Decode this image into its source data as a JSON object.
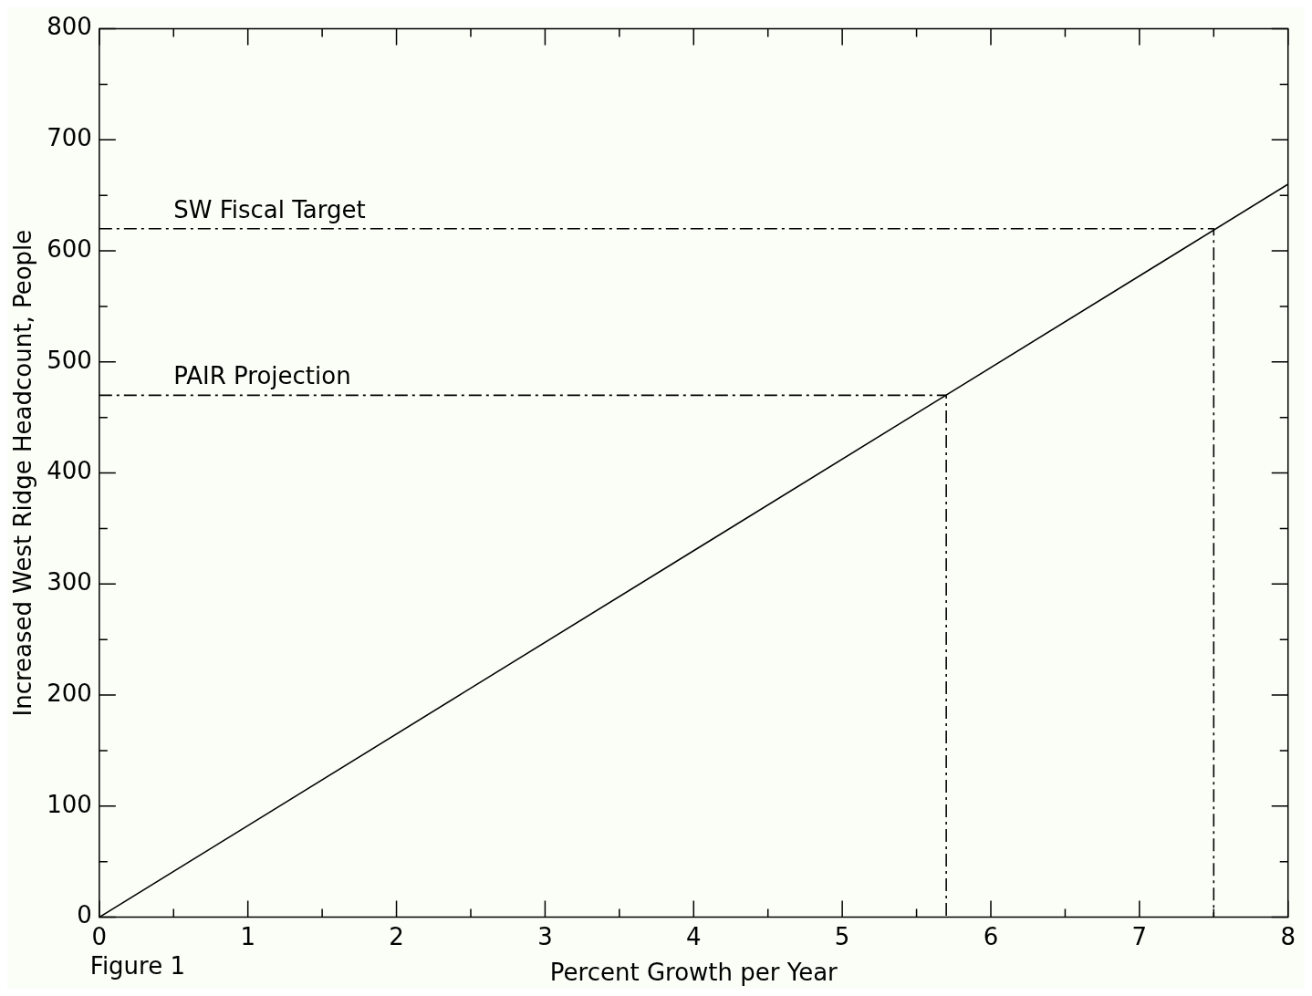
{
  "chart_data": {
    "type": "line",
    "xlabel": "Percent Growth per Year",
    "ylabel": "Increased West Ridge Headcount, People",
    "xlim": [
      0,
      8
    ],
    "ylim": [
      0,
      800
    ],
    "xticks": [
      0,
      {
        "value": 0.5,
        "label": null
      },
      1,
      {
        "value": 1.5,
        "label": null
      },
      2,
      {
        "value": 2.5,
        "label": null
      },
      3,
      {
        "value": 3.5,
        "label": null
      },
      4,
      {
        "value": 4.5,
        "label": null
      },
      5,
      {
        "value": 5.5,
        "label": null
      },
      6,
      {
        "value": 6.5,
        "label": null
      },
      7,
      {
        "value": 7.5,
        "label": null
      },
      8
    ],
    "yticks": [
      0,
      {
        "value": 50,
        "label": null
      },
      100,
      {
        "value": 150,
        "label": null
      },
      200,
      {
        "value": 250,
        "label": null
      },
      300,
      {
        "value": 350,
        "label": null
      },
      400,
      {
        "value": 450,
        "label": null
      },
      500,
      {
        "value": 550,
        "label": null
      },
      600,
      {
        "value": 650,
        "label": null
      },
      700,
      {
        "value": 750,
        "label": null
      },
      800
    ],
    "series": [
      {
        "color": "#000000",
        "x": [
          0,
          8
        ],
        "values": [
          0,
          660
        ],
        "line_style": "solid"
      },
      {
        "color": "#000000",
        "x": [
          0,
          7.5,
          7.5
        ],
        "values": [
          620,
          620,
          0
        ],
        "line_style": "dashed"
      },
      {
        "color": "#000000",
        "x": [
          0,
          5.7,
          5.7
        ],
        "values": [
          470,
          470,
          0
        ],
        "line_style": "dashed"
      }
    ],
    "annotations": [
      {
        "text": "SW Fiscal Target",
        "x": 0.5,
        "y": 620
      },
      {
        "text": "PAIR Projection",
        "x": 0.5,
        "y": 470
      },
      "Figure 1"
    ],
    "grid": false,
    "legend": false,
    "marker": "none"
  }
}
